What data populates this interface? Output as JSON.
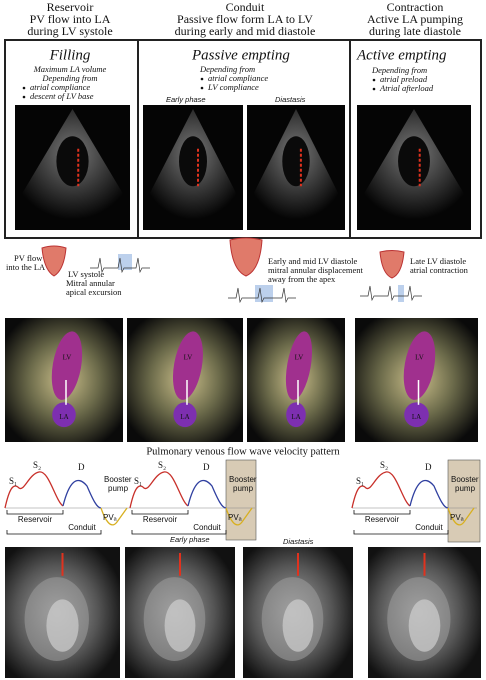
{
  "columns": [
    {
      "title": "Reservoir",
      "lines": [
        "PV flow into LA",
        "during LV systole"
      ]
    },
    {
      "title": "Conduit",
      "lines": [
        "Passive flow form LA to LV",
        "during early and mid diastole"
      ]
    },
    {
      "title": "Contraction",
      "lines": [
        "Active LA pumping",
        "during late diastole"
      ]
    }
  ],
  "boxes": [
    {
      "title": "Filling",
      "lines": [
        "Maximum LA volume",
        "Depending from"
      ],
      "bullets": [
        "atrial compliance",
        "descent of LV base"
      ]
    },
    {
      "title": "Passive empting",
      "lines": [
        "Depending from"
      ],
      "bullets": [
        "atrial compliance",
        "LV compliance"
      ]
    },
    {
      "title": "Active empting",
      "lines": [
        "Depending from"
      ],
      "bullets": [
        "atrial preload",
        "Atrial afterload"
      ]
    }
  ],
  "echo_labels": [
    "Early phase",
    "Diastasis"
  ],
  "mechanics": {
    "pv_flow": [
      "PV flow",
      "into the LA"
    ],
    "systole": [
      "LV systole",
      "Mitral annular",
      "apical excursion"
    ],
    "conduit": [
      "Early and mid LV diastole",
      "mitral annular displacement",
      "away from the apex"
    ],
    "contraction": [
      "Late LV diastole",
      "atrial contraction"
    ]
  },
  "three_d": [
    {
      "lv": "LV",
      "la": "LA"
    },
    {
      "lv": "LV",
      "la": "LA"
    },
    {
      "lv": "LV",
      "la": "LA"
    },
    {
      "lv": "LV",
      "la": "LA"
    }
  ],
  "flow_title": "Pulmonary venous flow wave velocity pattern",
  "waveforms": [
    {
      "s1": "S₁",
      "s2": "S₂",
      "d": "D",
      "booster": [
        "Booster",
        "pump"
      ],
      "reservoir": "Reservoir",
      "conduit": "Conduit",
      "pva": "PVₐ"
    },
    {
      "s1": "S₁",
      "s2": "S₂",
      "d": "D",
      "booster": [
        "Booster",
        "pump"
      ],
      "reservoir": "Reservoir",
      "conduit": "Conduit",
      "pva": "PVₐ"
    },
    {
      "s1": "S₁",
      "s2": "S₂",
      "d": "D",
      "booster": [
        "Booster",
        "pump"
      ],
      "reservoir": "Reservoir",
      "conduit": "Conduit",
      "pva": "PVₐ"
    }
  ],
  "mri_labels": [
    "Early phase",
    "Diastasis"
  ]
}
